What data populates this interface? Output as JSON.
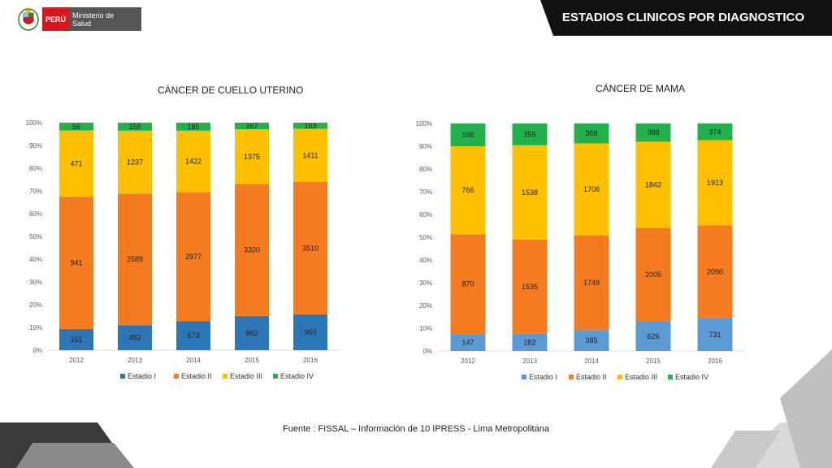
{
  "header": {
    "title": "ESTADIOS CLINICOS POR DIAGNOSTICO",
    "bar_color": "#111111"
  },
  "logo": {
    "country": "PERÚ",
    "ministry": "Ministerio de Salud"
  },
  "footer": {
    "source": "Fuente : FISSAL – Información de 10 IPRESS - Lima Metropolitana"
  },
  "chart_data": [
    {
      "type": "bar",
      "stacked": "percent",
      "title": "CÁNCER DE CUELLO UTERINO",
      "categories": [
        "2012",
        "2013",
        "2014",
        "2015",
        "2016"
      ],
      "yticks": [
        "0%",
        "10%",
        "20%",
        "30%",
        "40%",
        "50%",
        "60%",
        "70%",
        "80%",
        "90%",
        "100%"
      ],
      "legend_position": "bottom",
      "series": [
        {
          "name": "Estadio I",
          "color": "#2e75b6",
          "values": [
            151,
            492,
            673,
            862,
            950
          ]
        },
        {
          "name": "Estadio II",
          "color": "#f47b20",
          "values": [
            941,
            2589,
            2977,
            3320,
            3510
          ]
        },
        {
          "name": "Estadio III",
          "color": "#ffc000",
          "values": [
            471,
            1237,
            1422,
            1375,
            1411
          ]
        },
        {
          "name": "Estadio IV",
          "color": "#22b14c",
          "values": [
            56,
            158,
            185,
            167,
            163
          ]
        }
      ]
    },
    {
      "type": "bar",
      "stacked": "percent",
      "title": "CÁNCER DE MAMA",
      "categories": [
        "2012",
        "2013",
        "2014",
        "2015",
        "2016"
      ],
      "yticks": [
        "0%",
        "10%",
        "20%",
        "30%",
        "40%",
        "50%",
        "60%",
        "70%",
        "80%",
        "90%",
        "100%"
      ],
      "legend_position": "bottom",
      "series": [
        {
          "name": "Estadio I",
          "color": "#5b9bd5",
          "values": [
            147,
            282,
            385,
            626,
            731
          ]
        },
        {
          "name": "Estadio II",
          "color": "#f47b20",
          "values": [
            870,
            1535,
            1749,
            2005,
            2090
          ]
        },
        {
          "name": "Estadio III",
          "color": "#ffc000",
          "values": [
            766,
            1538,
            1706,
            1842,
            1913
          ]
        },
        {
          "name": "Estadio IV",
          "color": "#22b14c",
          "values": [
            198,
            355,
            368,
            388,
            374
          ]
        }
      ]
    }
  ]
}
